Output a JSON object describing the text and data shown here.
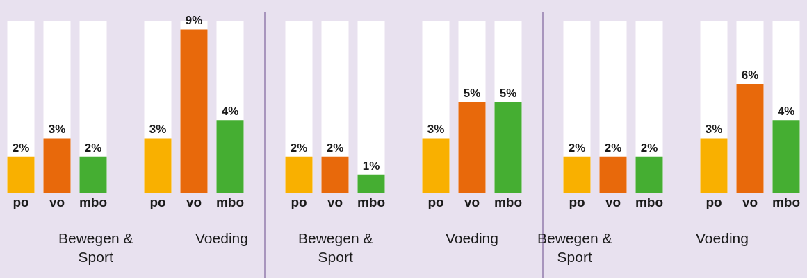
{
  "chart_data": [
    {
      "type": "bar",
      "xlabel": "Bewegen & Sport",
      "categories": [
        "po",
        "vo",
        "mbo"
      ],
      "values": [
        2,
        3,
        2
      ],
      "value_labels": [
        "2%",
        "3%",
        "2%"
      ],
      "colors": [
        "#f9b000",
        "#e8690b",
        "#45ae32"
      ],
      "tick_labels": "x"
    },
    {
      "type": "bar",
      "xlabel": "Voeding",
      "categories": [
        "po",
        "vo",
        "mbo"
      ],
      "values": [
        3,
        9,
        4
      ],
      "value_labels": [
        "3%",
        "9%",
        "4%"
      ],
      "colors": [
        "#f9b000",
        "#e8690b",
        "#45ae32"
      ],
      "tick_labels": "x"
    },
    {
      "type": "bar",
      "xlabel": "Bewegen & Sport",
      "categories": [
        "po",
        "vo",
        "mbo"
      ],
      "values": [
        2,
        2,
        1
      ],
      "value_labels": [
        "2%",
        "2%",
        "1%"
      ],
      "colors": [
        "#f9b000",
        "#e8690b",
        "#45ae32"
      ],
      "tick_labels": "x"
    },
    {
      "type": "bar",
      "xlabel": "Voeding",
      "categories": [
        "po",
        "vo",
        "mbo"
      ],
      "values": [
        3,
        5,
        5
      ],
      "value_labels": [
        "3%",
        "5%",
        "5%"
      ],
      "colors": [
        "#f9b000",
        "#e8690b",
        "#45ae32"
      ],
      "tick_labels": "x"
    },
    {
      "type": "bar",
      "xlabel": "Bewegen & Sport",
      "categories": [
        "po",
        "vo",
        "mbo"
      ],
      "values": [
        2,
        2,
        2
      ],
      "value_labels": [
        "2%",
        "2%",
        "2%"
      ],
      "colors": [
        "#f9b000",
        "#e8690b",
        "#45ae32"
      ],
      "tick_labels": "x"
    },
    {
      "type": "bar",
      "xlabel": "Voeding",
      "categories": [
        "po",
        "vo",
        "mbo"
      ],
      "values": [
        3,
        6,
        4
      ],
      "value_labels": [
        "3%",
        "6%",
        "4%"
      ],
      "colors": [
        "#f9b000",
        "#e8690b",
        "#45ae32"
      ],
      "tick_labels": "x"
    }
  ]
}
